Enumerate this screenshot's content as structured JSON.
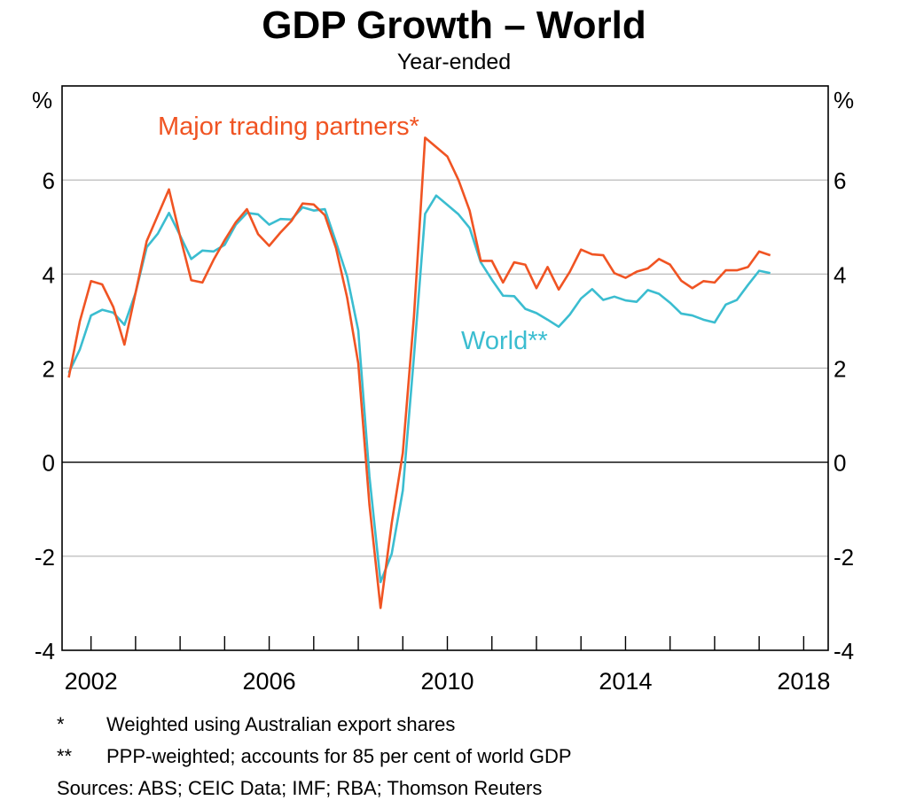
{
  "title": "GDP Growth – World",
  "subtitle": "Year-ended",
  "chart_data": {
    "type": "line",
    "title": "GDP Growth – World",
    "subtitle": "Year-ended",
    "y_unit": "%",
    "ylim": [
      -4,
      8
    ],
    "y_ticks": [
      -4,
      -2,
      0,
      2,
      4,
      6
    ],
    "x_ticks": [
      "2002",
      "2006",
      "2010",
      "2014",
      "2018"
    ],
    "x_tick_values": [
      2002,
      2006,
      2010,
      2014,
      2018
    ],
    "xlim": [
      2001.85,
      2019.05
    ],
    "grid": true,
    "colors": {
      "major": "#f05423",
      "world": "#3bbdd0"
    },
    "series": [
      {
        "name": "Major trading partners*",
        "x": [
          2002.0,
          2002.25,
          2002.5,
          2002.75,
          2003.0,
          2003.25,
          2003.5,
          2003.75,
          2004.0,
          2004.25,
          2004.5,
          2004.75,
          2005.0,
          2005.25,
          2005.5,
          2005.75,
          2006.0,
          2006.25,
          2006.5,
          2006.75,
          2007.0,
          2007.25,
          2007.5,
          2007.75,
          2008.0,
          2008.25,
          2008.5,
          2008.75,
          2009.0,
          2009.25,
          2009.5,
          2009.75,
          2010.0,
          2010.25,
          2010.5,
          2010.75,
          2011.0,
          2011.25,
          2011.5,
          2011.75,
          2012.0,
          2012.25,
          2012.5,
          2012.75,
          2013.0,
          2013.25,
          2013.5,
          2013.75,
          2014.0,
          2014.25,
          2014.5,
          2014.75,
          2015.0,
          2015.25,
          2015.5,
          2015.75,
          2016.0,
          2016.25,
          2016.5,
          2016.75,
          2017.0,
          2017.25,
          2017.5,
          2017.75
        ],
        "values": [
          1.8,
          3.0,
          3.85,
          3.78,
          3.3,
          2.5,
          3.6,
          4.7,
          5.25,
          5.8,
          4.8,
          3.87,
          3.82,
          4.3,
          4.72,
          5.1,
          5.38,
          4.85,
          4.6,
          4.88,
          5.13,
          5.5,
          5.48,
          5.25,
          4.55,
          3.5,
          2.1,
          -0.9,
          -3.1,
          -1.3,
          0.2,
          3.1,
          6.9,
          6.7,
          6.5,
          6.0,
          5.35,
          4.28,
          4.28,
          3.82,
          4.25,
          4.2,
          3.7,
          4.15,
          3.67,
          4.05,
          4.52,
          4.42,
          4.4,
          4.02,
          3.92,
          4.05,
          4.12,
          4.32,
          4.2,
          3.86,
          3.7,
          3.85,
          3.82,
          4.08,
          4.08,
          4.15,
          4.48,
          4.4
        ]
      },
      {
        "name": "World**",
        "x": [
          2002.0,
          2002.25,
          2002.5,
          2002.75,
          2003.0,
          2003.25,
          2003.5,
          2003.75,
          2004.0,
          2004.25,
          2004.5,
          2004.75,
          2005.0,
          2005.25,
          2005.5,
          2005.75,
          2006.0,
          2006.25,
          2006.5,
          2006.75,
          2007.0,
          2007.25,
          2007.5,
          2007.75,
          2008.0,
          2008.25,
          2008.5,
          2008.75,
          2009.0,
          2009.25,
          2009.5,
          2009.75,
          2010.0,
          2010.25,
          2010.5,
          2010.75,
          2011.0,
          2011.25,
          2011.5,
          2011.75,
          2012.0,
          2012.25,
          2012.5,
          2012.75,
          2013.0,
          2013.25,
          2013.5,
          2013.75,
          2014.0,
          2014.25,
          2014.5,
          2014.75,
          2015.0,
          2015.25,
          2015.5,
          2015.75,
          2016.0,
          2016.25,
          2016.5,
          2016.75,
          2017.0,
          2017.25,
          2017.5,
          2017.75
        ],
        "values": [
          1.9,
          2.4,
          3.12,
          3.24,
          3.18,
          2.92,
          3.6,
          4.57,
          4.86,
          5.3,
          4.82,
          4.32,
          4.5,
          4.48,
          4.62,
          5.05,
          5.3,
          5.27,
          5.05,
          5.17,
          5.16,
          5.42,
          5.35,
          5.38,
          4.68,
          3.95,
          2.8,
          -0.3,
          -2.55,
          -1.95,
          -0.6,
          2.25,
          5.28,
          5.67,
          5.47,
          5.27,
          4.98,
          4.25,
          3.88,
          3.54,
          3.53,
          3.26,
          3.17,
          3.03,
          2.88,
          3.14,
          3.48,
          3.68,
          3.45,
          3.52,
          3.44,
          3.41,
          3.66,
          3.58,
          3.39,
          3.16,
          3.12,
          3.03,
          2.97,
          3.35,
          3.45,
          3.77,
          4.07,
          4.02
        ]
      }
    ],
    "annotations": [
      {
        "text": "Major trading partners*",
        "series": "Major trading partners*"
      },
      {
        "text": "World**",
        "series": "World**"
      }
    ]
  },
  "footnotes": [
    {
      "mark": "*",
      "text": "Weighted using Australian export shares"
    },
    {
      "mark": "**",
      "text": "PPP-weighted; accounts for 85 per cent of world GDP"
    }
  ],
  "sources": "Sources: ABS; CEIC Data; IMF; RBA; Thomson Reuters"
}
